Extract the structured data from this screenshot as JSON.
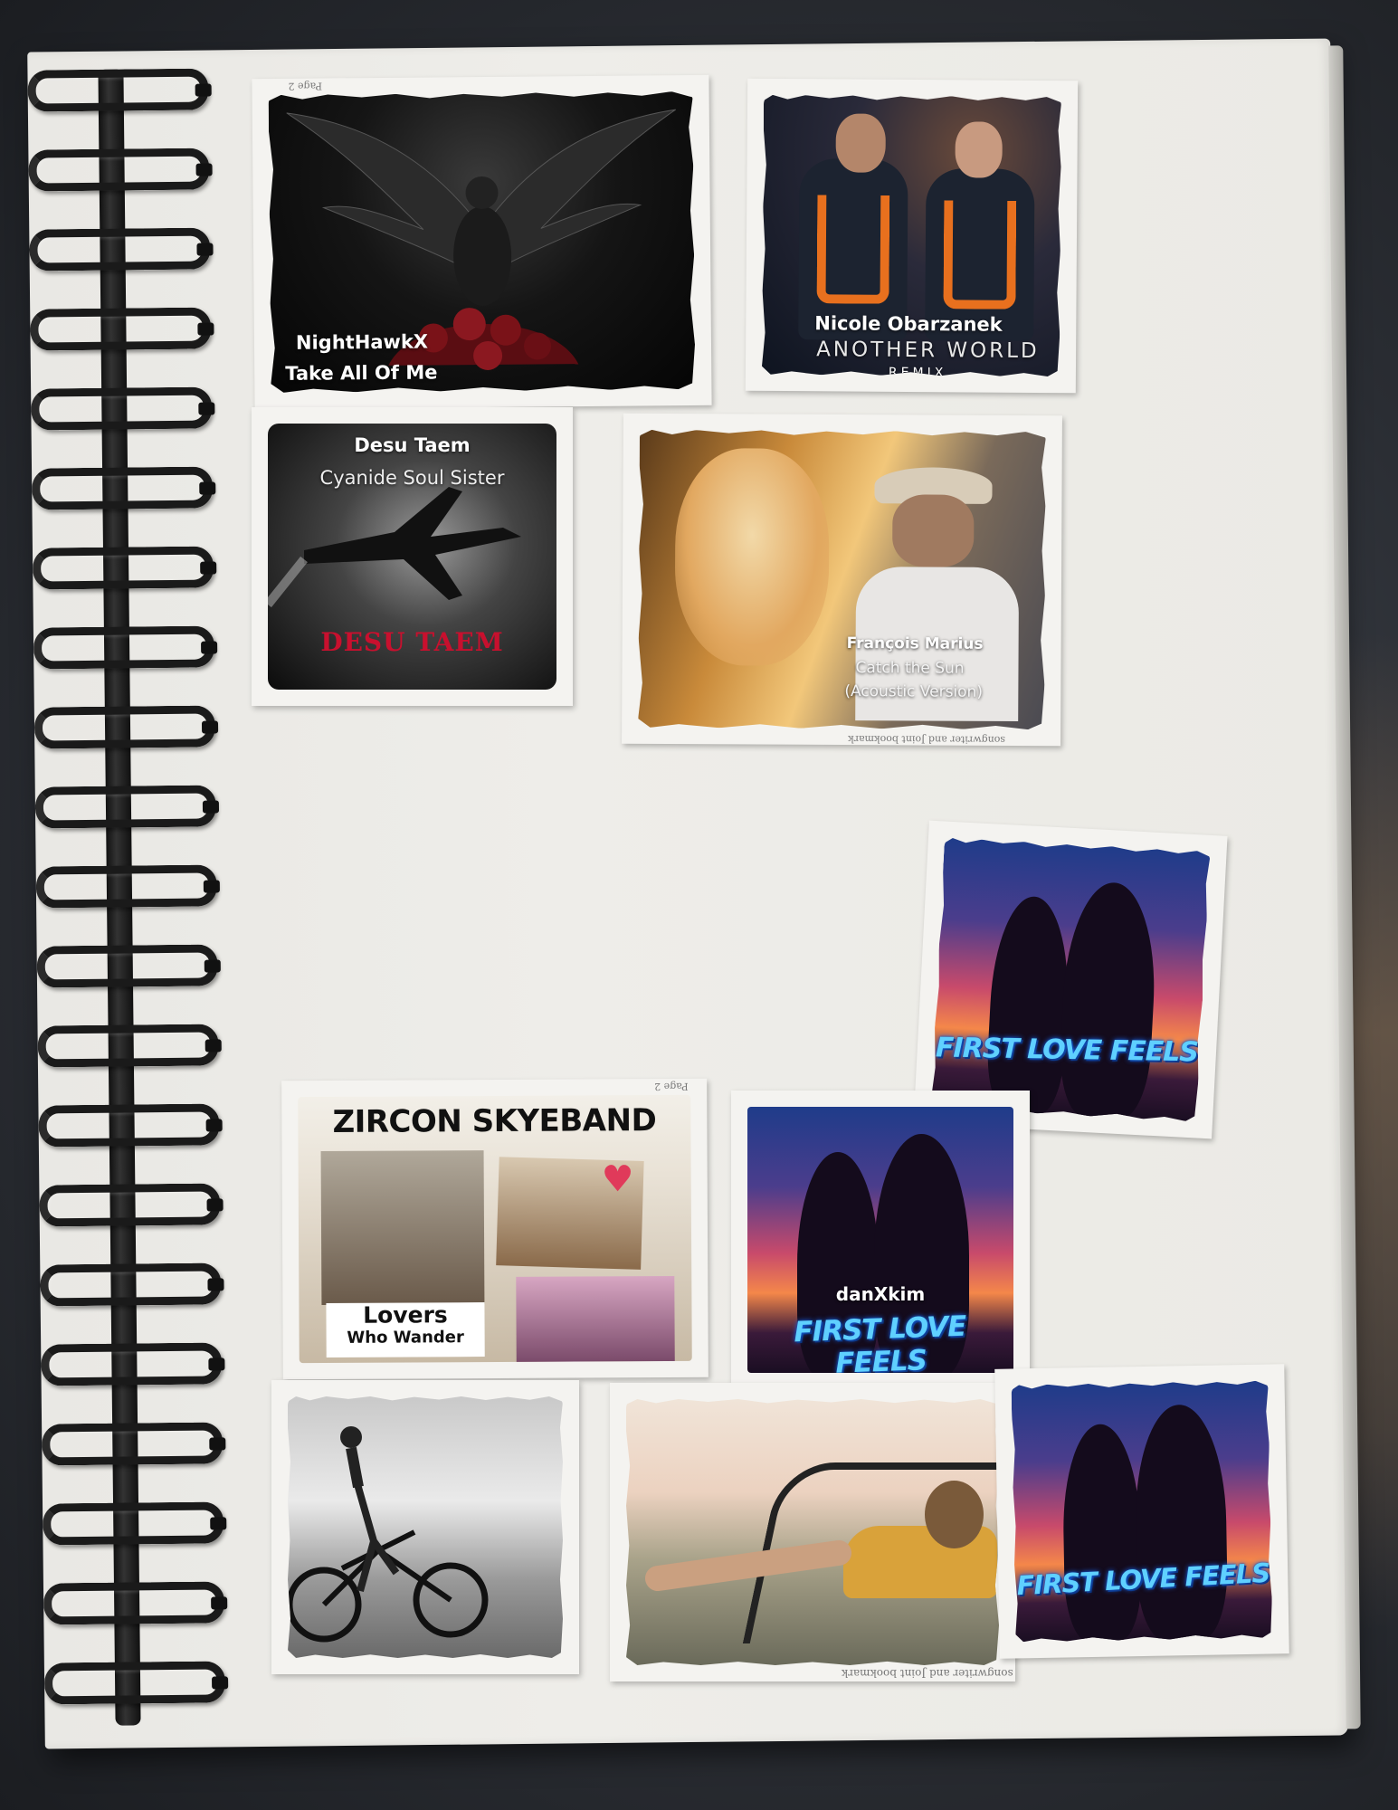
{
  "cards": {
    "nighthawk": {
      "artist": "NightHawkX",
      "title": "Take All Of Me"
    },
    "nicole": {
      "artist": "Nicole Obarzanek",
      "title": "ANOTHER WORLD",
      "subtitle": "REMIX"
    },
    "desu": {
      "artist": "Desu Taem",
      "title": "Cyanide Soul Sister",
      "logo": "DESU TAEM"
    },
    "francois": {
      "artist": "François Marius",
      "title": "Catch the Sun",
      "subtitle": "(Acoustic Version)"
    },
    "firstlove_top": {
      "title": "FIRST LOVE FEELS"
    },
    "zircon": {
      "band": "ZIRCON SKYEBAND",
      "title_line1": "Lovers",
      "title_line2": "Who Wander"
    },
    "danxkim": {
      "artist": "danXkim",
      "title": "FIRST LOVE FEELS"
    },
    "firstlove_bottom": {
      "title": "FIRST LOVE FEELS"
    }
  },
  "scraps": {
    "page_label": "Page 2",
    "strip_text": "songwriter and Joint bookmark"
  },
  "colors": {
    "page": "#ebeae5",
    "neon_blue": "#5fd0ff",
    "desu_red": "#c8102e"
  }
}
